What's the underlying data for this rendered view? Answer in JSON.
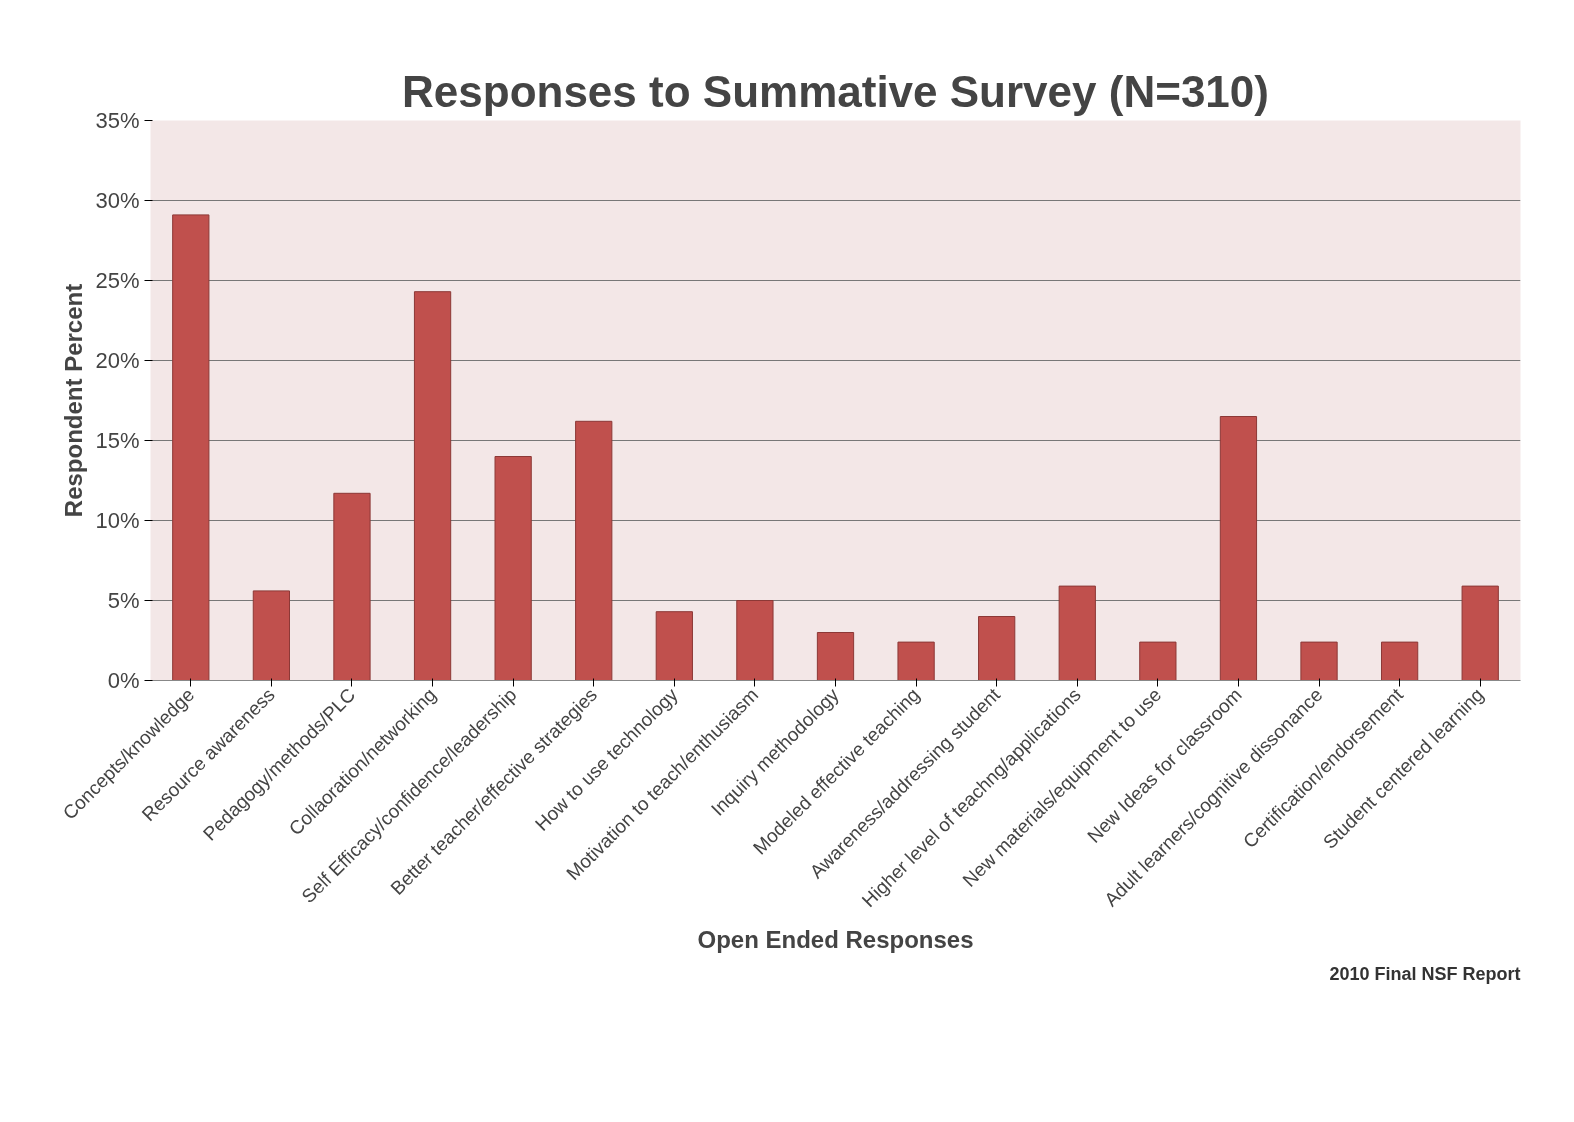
{
  "chart_data": {
    "type": "bar",
    "title": "Responses to Summative Survey (N=310)",
    "xlabel": "Open Ended Responses",
    "ylabel": "Respondent Percent",
    "categories": [
      "Concepts/knowledge",
      "Resource awareness",
      "Pedagogy/methods/PLC",
      "Collaoration/networking",
      "Self Efficacy/confidence/leadership",
      "Better teacher/effective strategies",
      "How to use technology",
      "Motivation to teach/enthusiasm",
      "Inquiry methodology",
      "Modeled effective teaching",
      "Awareness/addressing student",
      "Higher level of teachng/applications",
      "New materials/equipment to use",
      "New Ideas for classroom",
      "Adult learners/cognitive dissonance",
      "Certification/endorsement",
      "Student centered learning"
    ],
    "values": [
      29.1,
      5.6,
      11.7,
      24.3,
      14.0,
      16.2,
      4.3,
      5.0,
      3.0,
      2.4,
      4.0,
      5.9,
      2.4,
      16.5,
      2.4,
      2.4,
      5.9
    ],
    "color": "#c0504d",
    "ylim": [
      0,
      35
    ],
    "yticks": [
      {
        "value": 0,
        "label": "0%"
      },
      {
        "value": 5,
        "label": "5%"
      },
      {
        "value": 10,
        "label": "10%"
      },
      {
        "value": 15,
        "label": "15%"
      },
      {
        "value": 20,
        "label": "20%"
      },
      {
        "value": 25,
        "label": "25%"
      },
      {
        "value": 30,
        "label": "30%"
      },
      {
        "value": 35,
        "label": "35%"
      }
    ],
    "grid": "y",
    "annotations": [
      "2010 Final NSF Report"
    ]
  }
}
